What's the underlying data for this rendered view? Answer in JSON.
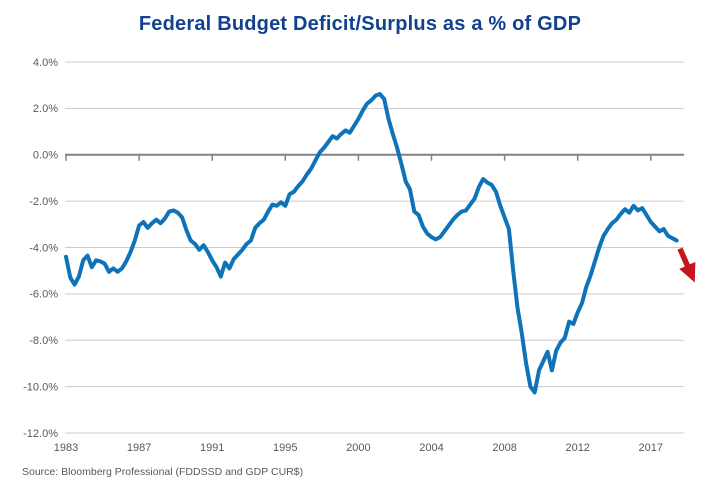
{
  "title": "Federal Budget Deficit/Surplus as a % of GDP",
  "source": "Source: Bloomberg Professional (FDDSSD and GDP CUR$)",
  "colors": {
    "title_text": "#11418f",
    "line": "#0e73b9",
    "arrow": "#c4161c",
    "axis_text": "#58595b",
    "gridline": "#cbcccd",
    "zero_axis": "#808285"
  },
  "chart_data": {
    "type": "line",
    "title": "Federal Budget Deficit/Surplus as a % of GDP",
    "frequency": "quarterly",
    "x_range": [
      "1983Q1",
      "2018Q3"
    ],
    "ylim": [
      -12,
      4
    ],
    "grid": "horizontal",
    "legend": "none",
    "y_tick_labels": [
      "4.0%",
      "2.0%",
      "0.0%",
      "-2.0%",
      "-4.0%",
      "-6.0%",
      "-8.0%",
      "-10.0%",
      "-12.0%"
    ],
    "y_tick_values": [
      4,
      2,
      0,
      -2,
      -4,
      -6,
      -8,
      -10,
      -12
    ],
    "x_tick_labels": [
      "1983",
      "1987",
      "1991",
      "1995",
      "2000",
      "2004",
      "2008",
      "2012",
      "2017"
    ],
    "x_tick_indices": [
      0,
      17,
      34,
      51,
      68,
      85,
      102,
      119,
      136
    ],
    "series_name": "Federal budget deficit/surplus, % of GDP (trailing 12 months)",
    "values": [
      -4.4,
      -5.3,
      -5.6,
      -5.25,
      -4.55,
      -4.35,
      -4.85,
      -4.55,
      -4.6,
      -4.7,
      -5.05,
      -4.9,
      -5.05,
      -4.9,
      -4.6,
      -4.2,
      -3.7,
      -3.05,
      -2.9,
      -3.15,
      -2.95,
      -2.8,
      -2.95,
      -2.75,
      -2.45,
      -2.4,
      -2.5,
      -2.7,
      -3.25,
      -3.7,
      -3.85,
      -4.1,
      -3.9,
      -4.2,
      -4.55,
      -4.85,
      -5.25,
      -4.65,
      -4.9,
      -4.5,
      -4.3,
      -4.1,
      -3.85,
      -3.7,
      -3.15,
      -2.95,
      -2.8,
      -2.45,
      -2.15,
      -2.2,
      -2.05,
      -2.2,
      -1.7,
      -1.6,
      -1.35,
      -1.15,
      -0.85,
      -0.6,
      -0.25,
      0.1,
      0.3,
      0.55,
      0.8,
      0.7,
      0.9,
      1.05,
      0.95,
      1.25,
      1.55,
      1.9,
      2.2,
      2.35,
      2.55,
      2.62,
      2.4,
      1.55,
      0.9,
      0.3,
      -0.4,
      -1.15,
      -1.5,
      -2.45,
      -2.6,
      -3.1,
      -3.4,
      -3.55,
      -3.65,
      -3.55,
      -3.3,
      -3.05,
      -2.8,
      -2.6,
      -2.45,
      -2.4,
      -2.15,
      -1.9,
      -1.4,
      -1.05,
      -1.2,
      -1.3,
      -1.6,
      -2.2,
      -2.7,
      -3.2,
      -5.0,
      -6.6,
      -7.7,
      -9.0,
      -10.0,
      -10.25,
      -9.3,
      -8.9,
      -8.5,
      -9.3,
      -8.45,
      -8.1,
      -7.9,
      -7.2,
      -7.3,
      -6.8,
      -6.4,
      -5.7,
      -5.2,
      -4.6,
      -4.0,
      -3.5,
      -3.2,
      -2.95,
      -2.8,
      -2.55,
      -2.35,
      -2.5,
      -2.2,
      -2.4,
      -2.3,
      -2.6,
      -2.9,
      -3.1,
      -3.3,
      -3.2,
      -3.5,
      -3.6,
      -3.7
    ],
    "annotation_arrow": {
      "from": {
        "index": 142.8,
        "value": -4.05
      },
      "to": {
        "index": 144.8,
        "value": -4.9
      }
    }
  }
}
